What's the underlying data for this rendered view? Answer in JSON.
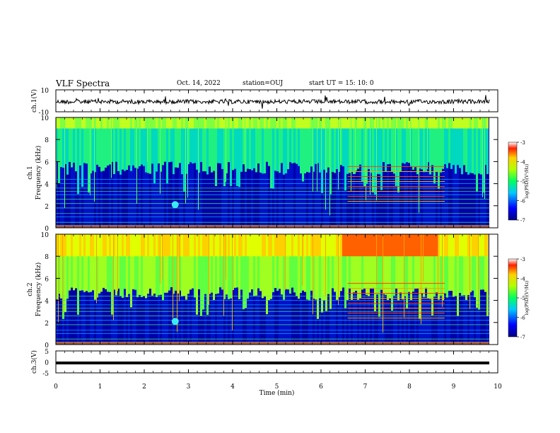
{
  "header": {
    "title": "VLF Spectra",
    "date": "Oct. 14, 2022",
    "station": "station=OUJ",
    "start": "start  UT =   15: 10: 0"
  },
  "chart_data": [
    {
      "type": "line",
      "ylabel": "ch.1(V)",
      "ylim": [
        -10,
        10
      ],
      "yticks": [
        "10",
        "-10"
      ],
      "xlim": [
        0,
        10
      ],
      "color": "#000000"
    },
    {
      "type": "heatmap",
      "ylabel": "ch.1\nFrequency (kHz)",
      "ylim": [
        0,
        10
      ],
      "yticks": [
        "0",
        "2",
        "4",
        "6",
        "8",
        "10"
      ],
      "xlim": [
        0,
        10
      ],
      "colorbar": {
        "label": "log(PSD)(V²/Hz)",
        "ticks": [
          "-3",
          "-4",
          "-5",
          "-6",
          "-7"
        ],
        "range": [
          -7,
          -3
        ]
      },
      "features": {
        "whistler_time_min": 2.7,
        "whistler_freq_khz": 2.1,
        "bursty_lines_min": [
          6.6,
          8.8
        ]
      }
    },
    {
      "type": "heatmap",
      "ylabel": "ch.2\nFrequency (kHz)",
      "ylim": [
        0,
        10
      ],
      "yticks": [
        "0",
        "2",
        "4",
        "6",
        "8",
        "10"
      ],
      "xlim": [
        0,
        10
      ],
      "colorbar": {
        "label": "log(PSD)(V²/Hz)",
        "ticks": [
          "-3",
          "-4",
          "-5",
          "-6",
          "-7"
        ],
        "range": [
          -7,
          -3
        ]
      },
      "features": {
        "whistler_time_min": 2.7,
        "whistler_freq_khz": 2.1,
        "bursty_lines_min": [
          6.6,
          8.8
        ]
      }
    },
    {
      "type": "line",
      "ylabel": "ch.3(V)",
      "ylim": [
        -5,
        5
      ],
      "yticks": [
        "5",
        "0",
        "-5"
      ],
      "xlim": [
        0,
        10
      ],
      "series": [
        {
          "values": [
            -0.5,
            -0.5
          ]
        }
      ]
    }
  ],
  "xaxis": {
    "label": "Time (min)",
    "ticks": [
      "0",
      "1",
      "2",
      "3",
      "4",
      "5",
      "6",
      "7",
      "8",
      "9",
      "10"
    ]
  }
}
